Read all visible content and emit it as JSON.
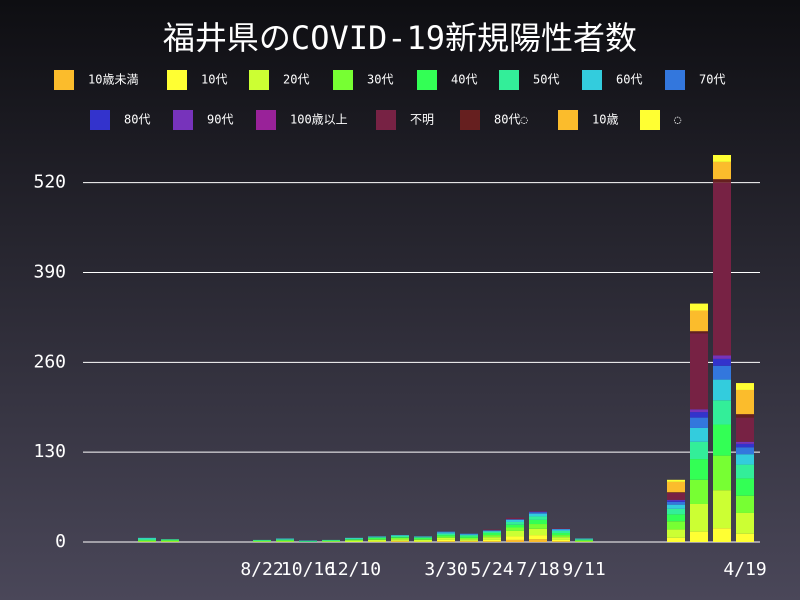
{
  "chart_data": {
    "type": "stacked-bar",
    "title": "福井県のCOVID-19新規陽性者数",
    "categories": [
      null,
      null,
      null,
      null,
      null,
      null,
      null,
      "8/22",
      null,
      "10/16",
      null,
      "12/10",
      null,
      null,
      null,
      "3/30",
      null,
      "5/24",
      null,
      "7/18",
      null,
      "9/11",
      null,
      null,
      null,
      null,
      null,
      null,
      "4/19"
    ],
    "ylim": [
      0,
      560
    ],
    "yticks": [
      0,
      130,
      260,
      390,
      520
    ],
    "grid": true,
    "series": [
      {
        "name": "10歳未満",
        "color": "#fbbc2c",
        "values": [
          0,
          0,
          0,
          0,
          0,
          0,
          0,
          0,
          0,
          0,
          0,
          0,
          0,
          1,
          0,
          1,
          1,
          1,
          3,
          4,
          1,
          0,
          0,
          0,
          0,
          0,
          0,
          0,
          0
        ]
      },
      {
        "name": "10代",
        "color": "#ffff33",
        "values": [
          0,
          0,
          0,
          0,
          0,
          0,
          0,
          0,
          0,
          0,
          0,
          0,
          1,
          1,
          1,
          2,
          1,
          2,
          5,
          6,
          2,
          0,
          0,
          0,
          0,
          6,
          15,
          20,
          12
        ]
      },
      {
        "name": "20代",
        "color": "#ccff33",
        "values": [
          0,
          0,
          1,
          1,
          0,
          0,
          0,
          1,
          1,
          0,
          1,
          2,
          2,
          2,
          2,
          3,
          2,
          4,
          8,
          9,
          4,
          1,
          0,
          0,
          0,
          12,
          40,
          55,
          30
        ]
      },
      {
        "name": "30代",
        "color": "#77ff33",
        "values": [
          0,
          0,
          1,
          1,
          0,
          0,
          0,
          0,
          1,
          0,
          0,
          1,
          1,
          2,
          1,
          2,
          2,
          3,
          5,
          7,
          3,
          1,
          0,
          0,
          0,
          12,
          35,
          50,
          25
        ]
      },
      {
        "name": "40代",
        "color": "#33ff55",
        "values": [
          0,
          0,
          1,
          1,
          0,
          0,
          0,
          1,
          1,
          1,
          1,
          1,
          2,
          1,
          2,
          2,
          2,
          3,
          4,
          6,
          3,
          1,
          0,
          0,
          0,
          10,
          30,
          45,
          25
        ]
      },
      {
        "name": "50代",
        "color": "#33ee99",
        "values": [
          0,
          0,
          2,
          1,
          0,
          0,
          0,
          1,
          1,
          0,
          1,
          1,
          1,
          2,
          1,
          2,
          2,
          2,
          4,
          5,
          3,
          1,
          0,
          0,
          0,
          8,
          25,
          35,
          20
        ]
      },
      {
        "name": "60代",
        "color": "#33ccdd",
        "values": [
          0,
          0,
          1,
          0,
          0,
          0,
          0,
          0,
          1,
          1,
          0,
          1,
          1,
          1,
          1,
          2,
          1,
          1,
          3,
          4,
          2,
          1,
          0,
          0,
          0,
          6,
          20,
          30,
          15
        ]
      },
      {
        "name": "70代",
        "color": "#3377dd",
        "values": [
          0,
          0,
          0,
          0,
          0,
          0,
          0,
          0,
          0,
          0,
          0,
          0,
          0,
          0,
          0,
          1,
          1,
          1,
          1,
          2,
          1,
          0,
          0,
          0,
          0,
          4,
          15,
          20,
          10
        ]
      },
      {
        "name": "80代",
        "color": "#3333cc",
        "values": [
          0,
          0,
          0,
          0,
          0,
          0,
          0,
          0,
          0,
          0,
          0,
          0,
          0,
          0,
          0,
          0,
          0,
          0,
          0,
          1,
          0,
          0,
          0,
          0,
          0,
          2,
          8,
          10,
          5
        ]
      },
      {
        "name": "90代",
        "color": "#7733bb",
        "values": [
          0,
          0,
          0,
          0,
          0,
          0,
          0,
          0,
          0,
          0,
          0,
          0,
          0,
          0,
          0,
          0,
          0,
          0,
          0,
          0,
          0,
          0,
          0,
          0,
          0,
          1,
          4,
          5,
          3
        ]
      },
      {
        "name": "100歳以上",
        "color": "#992299",
        "values": [
          0,
          0,
          0,
          0,
          0,
          0,
          0,
          0,
          0,
          0,
          0,
          0,
          0,
          0,
          0,
          0,
          0,
          0,
          0,
          0,
          0,
          0,
          0,
          0,
          0,
          0,
          0,
          0,
          0
        ]
      },
      {
        "name": "不明",
        "color": "#772244",
        "values": [
          0,
          0,
          0,
          0,
          0,
          0,
          0,
          0,
          0,
          0,
          0,
          0,
          0,
          0,
          0,
          0,
          0,
          1,
          2,
          1,
          1,
          0,
          0,
          0,
          0,
          10,
          110,
          250,
          35
        ]
      },
      {
        "name": "80代◌",
        "color": "#661f1f",
        "values": [
          0,
          0,
          0,
          0,
          0,
          0,
          0,
          0,
          0,
          0,
          0,
          0,
          0,
          0,
          0,
          0,
          0,
          0,
          0,
          0,
          0,
          0,
          0,
          0,
          0,
          1,
          3,
          5,
          5
        ]
      },
      {
        "name": "10歳",
        "color": "#fbbc2c",
        "values": [
          0,
          0,
          0,
          0,
          0,
          0,
          0,
          0,
          0,
          0,
          0,
          0,
          0,
          0,
          0,
          0,
          0,
          0,
          0,
          0,
          0,
          0,
          0,
          0,
          0,
          15,
          30,
          25,
          35
        ]
      },
      {
        "name": "◌",
        "color": "#ffff33",
        "values": [
          0,
          0,
          0,
          0,
          0,
          0,
          0,
          0,
          0,
          0,
          0,
          0,
          0,
          0,
          0,
          0,
          0,
          0,
          0,
          0,
          0,
          0,
          0,
          0,
          0,
          3,
          10,
          10,
          10
        ]
      }
    ]
  }
}
